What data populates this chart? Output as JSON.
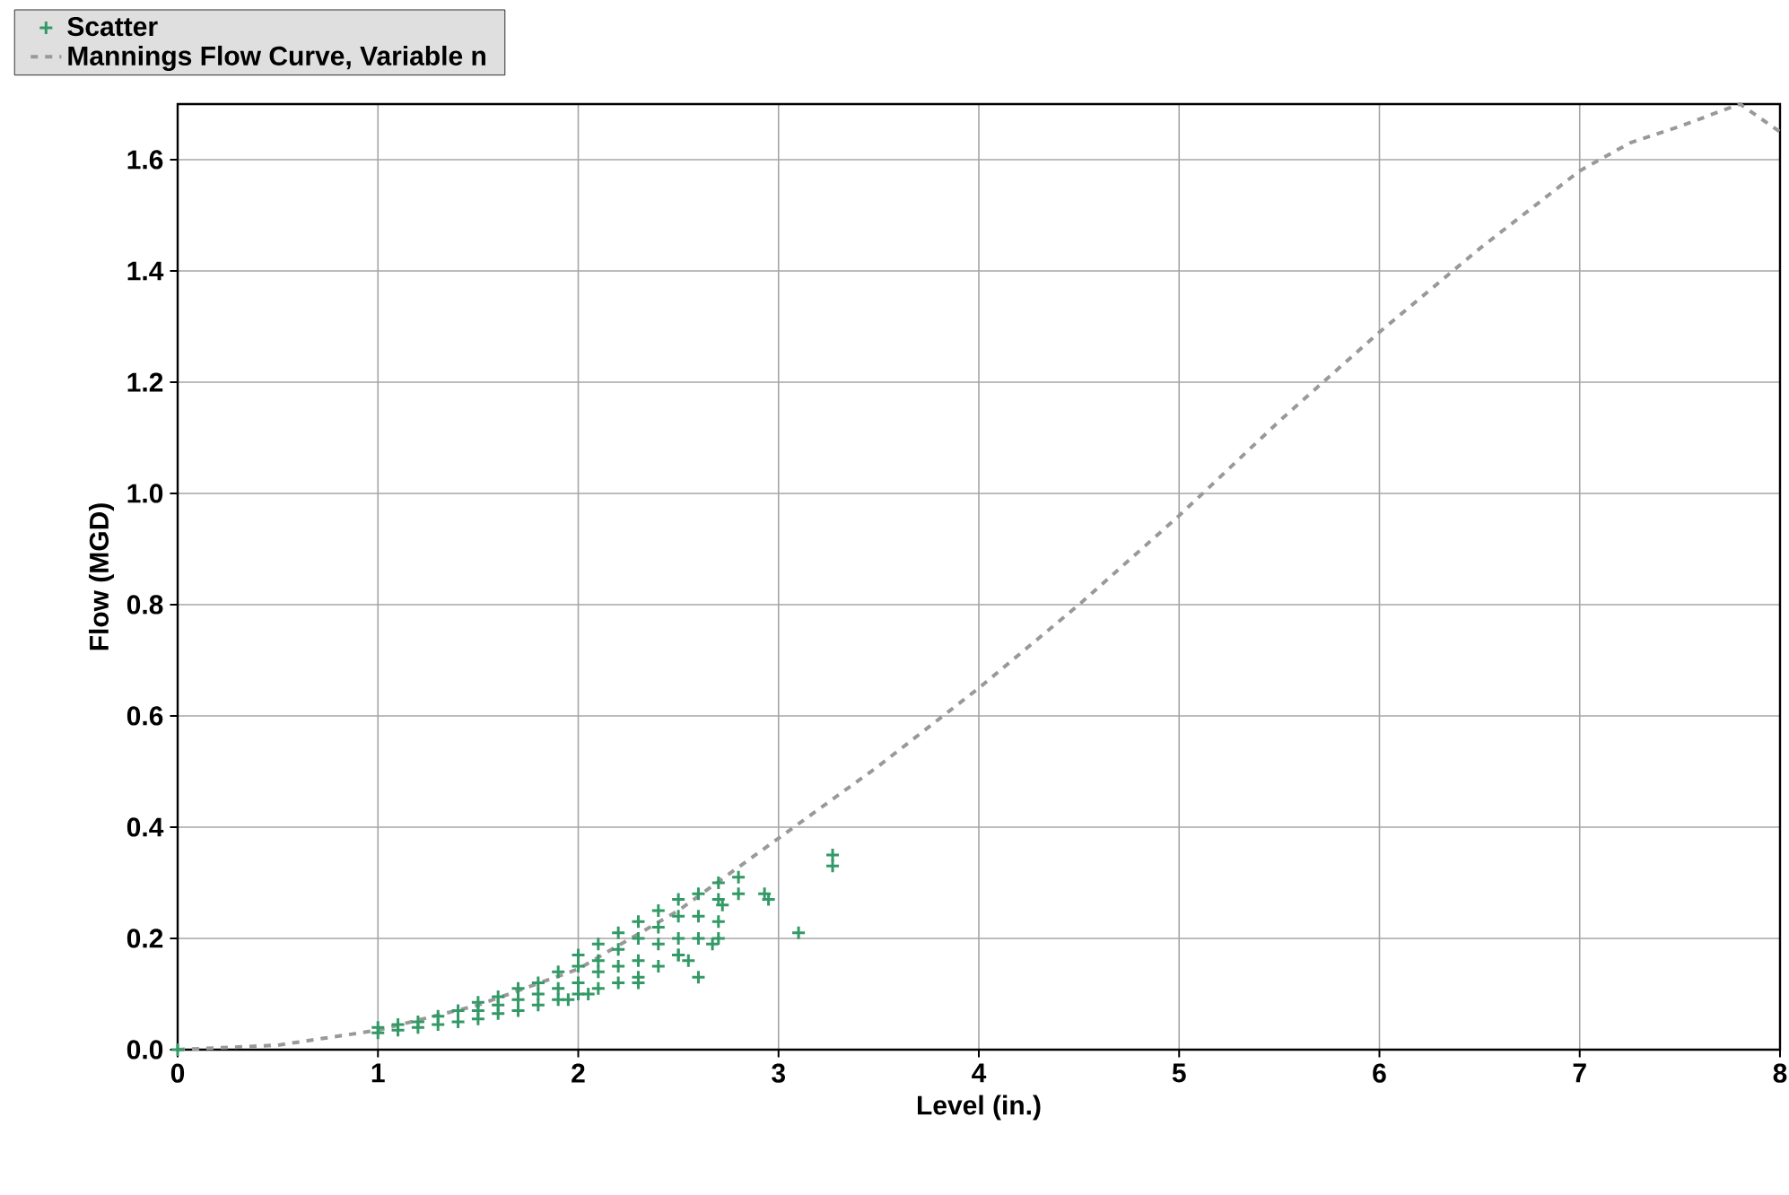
{
  "chart_data": {
    "type": "scatter",
    "xlabel": "Level (in.)",
    "ylabel": "Flow (MGD)",
    "xlim": [
      0,
      8
    ],
    "xticks": [
      0,
      1,
      2,
      3,
      4,
      5,
      6,
      7,
      8
    ],
    "ylim": [
      0,
      1.7
    ],
    "yticks": [
      {
        "value": 0,
        "label": "0.0"
      },
      {
        "value": 0.2,
        "label": "0.2"
      },
      {
        "value": 0.4,
        "label": "0.4"
      },
      {
        "value": 0.6,
        "label": "0.6"
      },
      {
        "value": 0.8,
        "label": "0.8"
      },
      {
        "value": 1.0,
        "label": "1.0"
      },
      {
        "value": 1.2,
        "label": "1.2"
      },
      {
        "value": 1.4,
        "label": "1.4"
      },
      {
        "value": 1.6,
        "label": "1.6"
      }
    ],
    "grid": true,
    "legend": "top left",
    "series": [
      {
        "name": "Scatter",
        "color": "#339966",
        "marker": "cross",
        "x": [
          0,
          1.0,
          1.0,
          1.1,
          1.1,
          1.2,
          1.2,
          1.3,
          1.3,
          1.4,
          1.4,
          1.5,
          1.5,
          1.5,
          1.6,
          1.6,
          1.6,
          1.7,
          1.7,
          1.7,
          1.8,
          1.8,
          1.8,
          1.9,
          1.9,
          1.9,
          2.0,
          2.0,
          2.0,
          2.0,
          2.1,
          2.1,
          2.1,
          2.1,
          2.2,
          2.2,
          2.2,
          2.2,
          2.3,
          2.3,
          2.3,
          2.3,
          2.4,
          2.4,
          2.4,
          2.4,
          2.5,
          2.5,
          2.5,
          2.5,
          2.6,
          2.6,
          2.6,
          2.7,
          2.7,
          2.7,
          2.8,
          2.8,
          2.5,
          2.55,
          2.6,
          2.67,
          2.7,
          2.72,
          2.93,
          2.95,
          3.1,
          3.27,
          3.27,
          1.95,
          2.05,
          2.3
        ],
        "values": [
          0,
          0.03,
          0.04,
          0.035,
          0.045,
          0.04,
          0.05,
          0.045,
          0.06,
          0.05,
          0.07,
          0.055,
          0.07,
          0.085,
          0.065,
          0.08,
          0.095,
          0.07,
          0.09,
          0.11,
          0.08,
          0.1,
          0.12,
          0.09,
          0.11,
          0.14,
          0.1,
          0.12,
          0.15,
          0.17,
          0.11,
          0.14,
          0.16,
          0.19,
          0.12,
          0.15,
          0.18,
          0.21,
          0.13,
          0.16,
          0.2,
          0.23,
          0.15,
          0.19,
          0.22,
          0.25,
          0.17,
          0.2,
          0.24,
          0.27,
          0.2,
          0.24,
          0.28,
          0.23,
          0.27,
          0.3,
          0.28,
          0.31,
          0.17,
          0.16,
          0.13,
          0.19,
          0.2,
          0.26,
          0.28,
          0.27,
          0.21,
          0.35,
          0.33,
          0.09,
          0.1,
          0.12
        ]
      },
      {
        "name": "Mannings Flow Curve, Variable n",
        "type": "line",
        "color": "#999999",
        "line_style": "dashed",
        "marker": "none",
        "x": [
          0,
          0.5,
          1,
          1.5,
          2,
          2.5,
          3,
          3.5,
          4,
          4.5,
          5,
          5.5,
          6,
          6.5,
          7,
          7.25,
          7.5,
          7.8,
          8
        ],
        "values": [
          0,
          0.008,
          0.035,
          0.08,
          0.145,
          0.25,
          0.38,
          0.51,
          0.65,
          0.8,
          0.96,
          1.13,
          1.29,
          1.44,
          1.58,
          1.63,
          1.66,
          1.7,
          1.65
        ]
      }
    ]
  }
}
